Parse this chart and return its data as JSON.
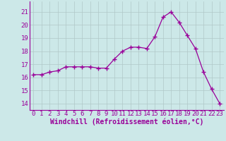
{
  "x": [
    0,
    1,
    2,
    3,
    4,
    5,
    6,
    7,
    8,
    9,
    10,
    11,
    12,
    13,
    14,
    15,
    16,
    17,
    18,
    19,
    20,
    21,
    22,
    23
  ],
  "y": [
    16.2,
    16.2,
    16.4,
    16.5,
    16.8,
    16.8,
    16.8,
    16.8,
    16.7,
    16.7,
    17.4,
    18.0,
    18.3,
    18.3,
    18.2,
    19.1,
    20.6,
    21.0,
    20.2,
    19.2,
    18.2,
    16.4,
    15.1,
    14.0
  ],
  "line_color": "#990099",
  "marker": "D",
  "marker_size": 2.2,
  "bg_color": "#cce8e8",
  "grid_color": "#b0c8c8",
  "xlabel": "Windchill (Refroidissement éolien,°C)",
  "ylim": [
    13.5,
    21.8
  ],
  "xlim": [
    -0.5,
    23.5
  ],
  "yticks": [
    14,
    15,
    16,
    17,
    18,
    19,
    20,
    21
  ],
  "xticks": [
    0,
    1,
    2,
    3,
    4,
    5,
    6,
    7,
    8,
    9,
    10,
    11,
    12,
    13,
    14,
    15,
    16,
    17,
    18,
    19,
    20,
    21,
    22,
    23
  ],
  "xlabel_color": "#990099",
  "tick_color": "#990099",
  "tick_label_color": "#990099",
  "spine_color": "#990099",
  "xlabel_fontsize": 7.0,
  "tick_fontsize": 6.5
}
